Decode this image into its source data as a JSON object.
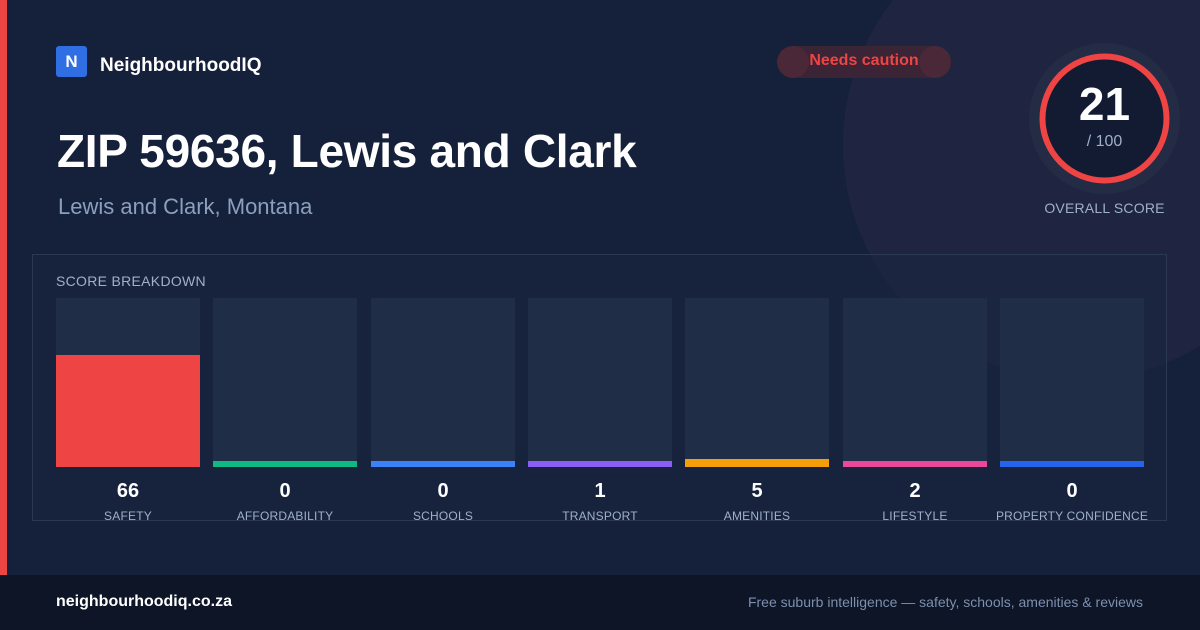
{
  "brand": {
    "logo_letter": "N",
    "name": "NeighbourhoodIQ"
  },
  "status_badge": {
    "label": "Needs caution",
    "color": "#ef4444"
  },
  "title": "ZIP 59636, Lewis and Clark",
  "subtitle": "Lewis and Clark, Montana",
  "overall": {
    "score": "21",
    "max_label": "/ 100",
    "caption": "OVERALL SCORE",
    "value": 21,
    "max": 100,
    "color": "#ef4444"
  },
  "breakdown": {
    "title": "SCORE BREAKDOWN",
    "max": 100,
    "items": [
      {
        "label": "SAFETY",
        "value": 66,
        "display": "66",
        "color": "#ef4444"
      },
      {
        "label": "AFFORDABILITY",
        "value": 0,
        "display": "0",
        "color": "#10b981"
      },
      {
        "label": "SCHOOLS",
        "value": 0,
        "display": "0",
        "color": "#3b82f6"
      },
      {
        "label": "TRANSPORT",
        "value": 1,
        "display": "1",
        "color": "#8b5cf6"
      },
      {
        "label": "AMENITIES",
        "value": 5,
        "display": "5",
        "color": "#f59e0b"
      },
      {
        "label": "LIFESTYLE",
        "value": 2,
        "display": "2",
        "color": "#ec4899"
      },
      {
        "label": "PROPERTY CONFIDENCE",
        "value": 0,
        "display": "0",
        "color": "#2563eb"
      }
    ]
  },
  "footer": {
    "domain": "neighbourhoodiq.co.za",
    "tagline": "Free suburb intelligence — safety, schools, amenities & reviews"
  }
}
